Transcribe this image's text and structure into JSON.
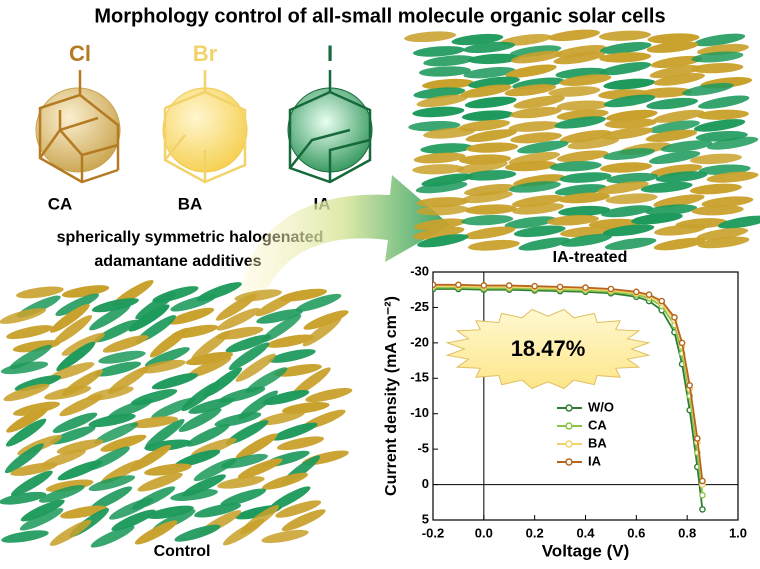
{
  "title": "Morphology control of all-small molecule organic solar cells",
  "molecules": [
    {
      "atom": "Cl",
      "name": "CA"
    },
    {
      "atom": "Br",
      "name": "BA"
    },
    {
      "atom": "I",
      "name": "IA"
    }
  ],
  "caption": [
    "spherically symmetric halogenated",
    "adamantane additives"
  ],
  "films": {
    "treated": "IA-treated",
    "control": "Control"
  },
  "chart_data": {
    "type": "line",
    "xlabel": "Voltage (V)",
    "ylabel": "Current density (mA cm⁻²)",
    "annotation": "18.47%",
    "x": [
      -0.2,
      -0.1,
      0,
      0.1,
      0.2,
      0.3,
      0.4,
      0.5,
      0.6,
      0.65,
      0.7,
      0.75,
      0.78,
      0.81,
      0.84,
      0.86
    ],
    "series": [
      {
        "name": "W/O",
        "color": "#2e7d32",
        "values": [
          -27.6,
          -27.6,
          -27.5,
          -27.5,
          -27.4,
          -27.3,
          -27.2,
          -27.0,
          -26.5,
          -25.9,
          -24.6,
          -21.5,
          -17.0,
          -10.5,
          -2.5,
          3.5
        ]
      },
      {
        "name": "CA",
        "color": "#8bc34a",
        "values": [
          -27.8,
          -27.8,
          -27.7,
          -27.7,
          -27.6,
          -27.5,
          -27.4,
          -27.2,
          -26.8,
          -26.3,
          -25.2,
          -22.5,
          -18.5,
          -12.5,
          -4.5,
          1.5
        ]
      },
      {
        "name": "BA",
        "color": "#f2d36b",
        "values": [
          -28.0,
          -28.0,
          -27.9,
          -27.9,
          -27.8,
          -27.7,
          -27.6,
          -27.4,
          -27.0,
          -26.6,
          -25.6,
          -23.2,
          -19.5,
          -13.5,
          -6.0,
          0.0
        ]
      },
      {
        "name": "IA",
        "color": "#b5651d",
        "values": [
          -28.2,
          -28.2,
          -28.1,
          -28.1,
          -28.0,
          -27.9,
          -27.8,
          -27.6,
          -27.2,
          -26.8,
          -25.9,
          -23.6,
          -20.0,
          -14.0,
          -6.5,
          -0.5
        ]
      }
    ],
    "xlim": [
      -0.2,
      1.0
    ],
    "xticks": [
      -0.2,
      {
        "value": 0,
        "label": "0.0"
      },
      0.2,
      0.4,
      0.6,
      0.8,
      {
        "value": 1,
        "label": "1.0"
      }
    ],
    "ylim": [
      -30,
      5
    ],
    "yaxis_inverted": true,
    "yticks": [
      -30,
      -25,
      -20,
      -15,
      -10,
      -5,
      0,
      5
    ]
  }
}
